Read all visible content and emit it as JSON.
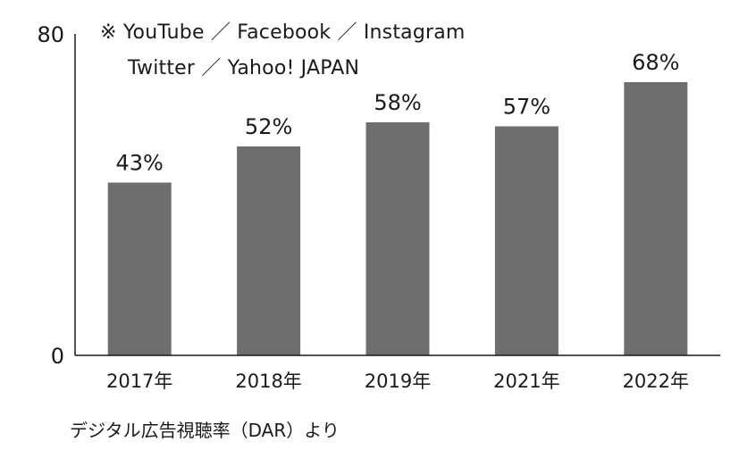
{
  "chart_data": {
    "type": "bar",
    "categories": [
      "2017年",
      "2018年",
      "2019年",
      "2021年",
      "2022年"
    ],
    "values": [
      43,
      52,
      58,
      57,
      68
    ],
    "value_labels": [
      "43%",
      "52%",
      "58%",
      "57%",
      "68%"
    ],
    "ylim": [
      0,
      80
    ],
    "y_ticks": [
      "0",
      "80"
    ],
    "bar_color": "#6f6d6e",
    "axis_color": "#1a1a1a",
    "grid": false,
    "annotations": [
      "※ YouTube ／ Facebook ／ Instagram",
      "Twitter ／ Yahoo! JAPAN"
    ]
  },
  "source": "デジタル広告視聴率（DAR）より"
}
